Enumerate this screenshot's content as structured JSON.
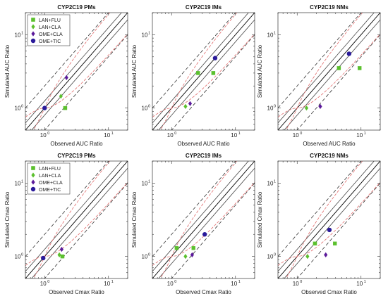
{
  "colors": {
    "green": "#5cc02e",
    "purple": "#5b1a9a",
    "navy": "#2a1a9a",
    "identity": "#000000",
    "fold2": "#333333",
    "pred": "#e06a6a"
  },
  "chart_data": [
    {
      "type": "scatter",
      "scale": "log",
      "xlim": [
        0.5,
        20
      ],
      "ylim": [
        0.5,
        20
      ],
      "title": "CYP2C19 PMs",
      "xlabel": "Observed AUC Ratio",
      "ylabel": "Simulated AUC Ratio",
      "legend": "top-left",
      "series": [
        {
          "name": "LAN+FLU",
          "marker": "square",
          "color": "green",
          "points": [
            [
              2.1,
              1.0
            ]
          ]
        },
        {
          "name": "LAN+CLA",
          "marker": "diamond",
          "color": "green",
          "points": [
            [
              1.8,
              1.45
            ]
          ]
        },
        {
          "name": "OME+CLA",
          "marker": "diamond",
          "color": "purple",
          "points": [
            [
              2.2,
              2.6
            ]
          ]
        },
        {
          "name": "OME+TIC",
          "marker": "circle",
          "color": "navy",
          "points": [
            [
              1.0,
              1.0
            ]
          ]
        }
      ]
    },
    {
      "type": "scatter",
      "scale": "log",
      "xlim": [
        0.5,
        20
      ],
      "ylim": [
        0.5,
        20
      ],
      "title": "CYP2C19 IMs",
      "xlabel": "Observed AUC Ratio",
      "ylabel": "Simulated AUC Ratio",
      "series": [
        {
          "name": "LAN+FLU",
          "marker": "square",
          "color": "green",
          "points": [
            [
              2.6,
              3.0
            ],
            [
              4.5,
              3.0
            ]
          ]
        },
        {
          "name": "LAN+CLA",
          "marker": "diamond",
          "color": "green",
          "points": [
            [
              1.65,
              1.05
            ]
          ]
        },
        {
          "name": "OME+CLA",
          "marker": "diamond",
          "color": "purple",
          "points": [
            [
              1.95,
              1.15
            ]
          ]
        },
        {
          "name": "OME+TIC",
          "marker": "circle",
          "color": "navy",
          "points": [
            [
              4.8,
              4.8
            ]
          ]
        }
      ]
    },
    {
      "type": "scatter",
      "scale": "log",
      "xlim": [
        0.5,
        20
      ],
      "ylim": [
        0.5,
        20
      ],
      "title": "CYP2C19 NMs",
      "xlabel": "Observed AUC Ratio",
      "ylabel": "Simulated AUC Ratio",
      "series": [
        {
          "name": "LAN+FLU",
          "marker": "square",
          "color": "green",
          "points": [
            [
              4.5,
              3.5
            ],
            [
              9.5,
              3.5
            ]
          ]
        },
        {
          "name": "LAN+CLA",
          "marker": "diamond",
          "color": "green",
          "points": [
            [
              1.4,
              1.0
            ]
          ]
        },
        {
          "name": "OME+CLA",
          "marker": "diamond",
          "color": "purple",
          "points": [
            [
              2.3,
              1.05
            ]
          ]
        },
        {
          "name": "OME+TIC",
          "marker": "circle",
          "color": "navy",
          "points": [
            [
              6.5,
              5.5
            ]
          ]
        }
      ]
    },
    {
      "type": "scatter",
      "scale": "log",
      "xlim": [
        0.5,
        20
      ],
      "ylim": [
        0.5,
        20
      ],
      "title": "CYP2C19 PMs",
      "xlabel": "Observed Cmax Ratio",
      "ylabel": "Simulated Cmax Ratio",
      "legend": "top-left",
      "series": [
        {
          "name": "LAN+FLU",
          "marker": "square",
          "color": "green",
          "points": [
            [
              1.9,
              1.0
            ]
          ]
        },
        {
          "name": "LAN+CLA",
          "marker": "diamond",
          "color": "green",
          "points": [
            [
              1.7,
              1.05
            ]
          ]
        },
        {
          "name": "OME+CLA",
          "marker": "diamond",
          "color": "purple",
          "points": [
            [
              1.85,
              1.25
            ]
          ]
        },
        {
          "name": "OME+TIC",
          "marker": "circle",
          "color": "navy",
          "points": [
            [
              0.95,
              0.95
            ]
          ]
        }
      ]
    },
    {
      "type": "scatter",
      "scale": "log",
      "xlim": [
        0.5,
        20
      ],
      "ylim": [
        0.5,
        20
      ],
      "title": "CYP2C19 IMs",
      "xlabel": "Observed Cmax Ratio",
      "ylabel": "Simulated Cmax Ratio",
      "series": [
        {
          "name": "LAN+FLU",
          "marker": "square",
          "color": "green",
          "points": [
            [
              1.2,
              1.3
            ],
            [
              2.2,
              1.3
            ]
          ]
        },
        {
          "name": "LAN+CLA",
          "marker": "diamond",
          "color": "green",
          "points": [
            [
              1.65,
              1.0
            ]
          ]
        },
        {
          "name": "OME+CLA",
          "marker": "diamond",
          "color": "purple",
          "points": [
            [
              2.1,
              1.05
            ]
          ]
        },
        {
          "name": "OME+TIC",
          "marker": "circle",
          "color": "navy",
          "points": [
            [
              3.3,
              2.0
            ]
          ]
        }
      ]
    },
    {
      "type": "scatter",
      "scale": "log",
      "xlim": [
        0.5,
        20
      ],
      "ylim": [
        0.5,
        20
      ],
      "title": "CYP2C19 NMs",
      "xlabel": "Observed Cmax Ratio",
      "ylabel": "Simulated Cmax Ratio",
      "series": [
        {
          "name": "LAN+FLU",
          "marker": "square",
          "color": "green",
          "points": [
            [
              1.9,
              1.5
            ],
            [
              3.9,
              1.5
            ]
          ]
        },
        {
          "name": "LAN+CLA",
          "marker": "diamond",
          "color": "green",
          "points": [
            [
              1.45,
              1.0
            ]
          ]
        },
        {
          "name": "OME+CLA",
          "marker": "diamond",
          "color": "purple",
          "points": [
            [
              2.8,
              1.05
            ]
          ]
        },
        {
          "name": "OME+TIC",
          "marker": "circle",
          "color": "navy",
          "points": [
            [
              3.2,
              2.3
            ]
          ]
        }
      ]
    }
  ]
}
